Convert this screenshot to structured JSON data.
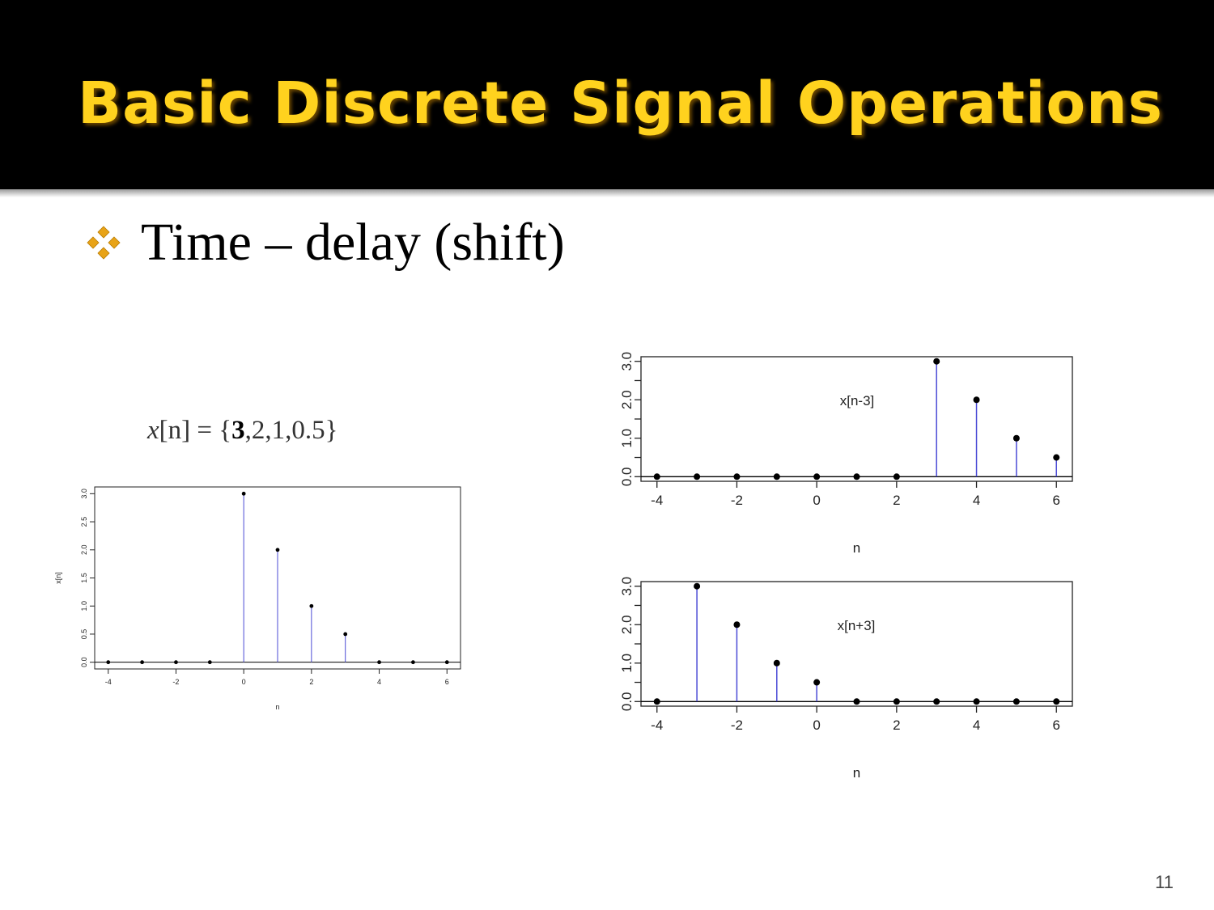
{
  "slide": {
    "title": "Basic Discrete Signal Operations",
    "bullet_text": "Time – delay (shift)",
    "page_number": "11",
    "title_color": "#ffd21e",
    "bullet_icon": "four-diamond-bullet-icon",
    "bullet_color": "#e8a317"
  },
  "formula": {
    "lhs": "x",
    "arg": "[n]",
    "eq": " = ",
    "open": "{",
    "first": "3",
    "rest": ",2,1,0.5",
    "close": "}"
  },
  "chart_data": [
    {
      "type": "scatter",
      "style": "stem",
      "title": "",
      "xlabel": "n",
      "ylabel": "x[n]",
      "x": [
        -4,
        -3,
        -2,
        -1,
        0,
        1,
        2,
        3,
        4,
        5,
        6
      ],
      "y": [
        0,
        0,
        0,
        0,
        3,
        2,
        1,
        0.5,
        0,
        0,
        0
      ],
      "xticks": [
        "-4",
        "-2",
        "0",
        "2",
        "4",
        "6"
      ],
      "yticks": [
        "0.0",
        "0.5",
        "1.0",
        "1.5",
        "2.0",
        "2.5",
        "3.0"
      ],
      "xlim": [
        -4,
        6
      ],
      "ylim": [
        0,
        3
      ],
      "annotation": "",
      "grid": false,
      "stem_color": "#4b4bd6",
      "point_color": "#000000"
    },
    {
      "type": "scatter",
      "style": "stem",
      "title": "",
      "xlabel": "n",
      "ylabel": "",
      "x": [
        -4,
        -3,
        -2,
        -1,
        0,
        1,
        2,
        3,
        4,
        5,
        6
      ],
      "y": [
        0,
        0,
        0,
        0,
        0,
        0,
        0,
        3,
        2,
        1,
        0.5
      ],
      "xticks": [
        "-4",
        "-2",
        "0",
        "2",
        "4",
        "6"
      ],
      "yticks": [
        "0.0",
        "1.0",
        "2.0",
        "3.0"
      ],
      "xlim": [
        -4,
        6
      ],
      "ylim": [
        0,
        3
      ],
      "annotation": "x[n-3]",
      "grid": false,
      "stem_color": "#4b4bd6",
      "point_color": "#000000"
    },
    {
      "type": "scatter",
      "style": "stem",
      "title": "",
      "xlabel": "n",
      "ylabel": "",
      "x": [
        -4,
        -3,
        -2,
        -1,
        0,
        1,
        2,
        3,
        4,
        5,
        6
      ],
      "y": [
        0,
        3,
        2,
        1,
        0.5,
        0,
        0,
        0,
        0,
        0,
        0
      ],
      "xticks": [
        "-4",
        "-2",
        "0",
        "2",
        "4",
        "6"
      ],
      "yticks": [
        "0.0",
        "1.0",
        "2.0",
        "3.0"
      ],
      "xlim": [
        -4,
        6
      ],
      "ylim": [
        0,
        3
      ],
      "annotation": "x[n+3]",
      "grid": false,
      "stem_color": "#4b4bd6",
      "point_color": "#000000"
    }
  ]
}
